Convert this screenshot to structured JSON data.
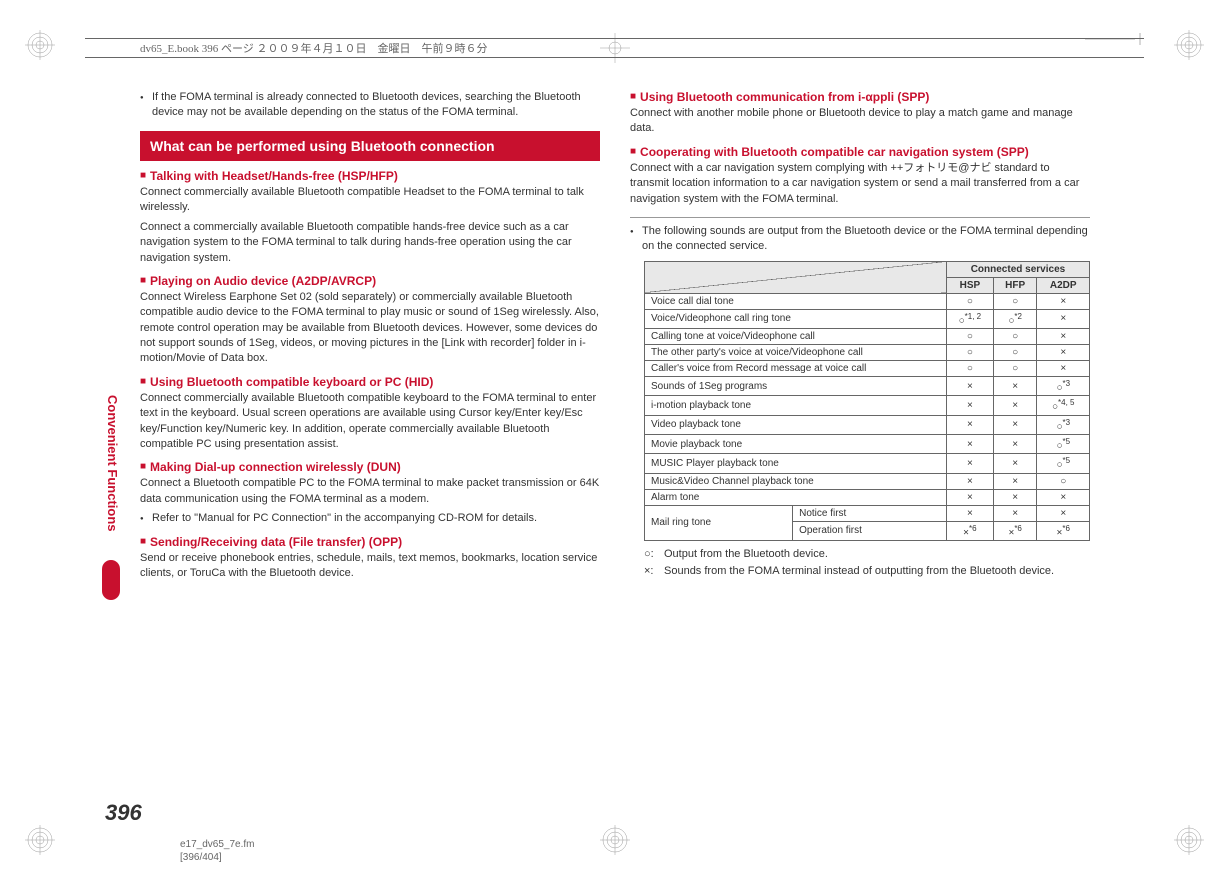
{
  "header": {
    "text": "dv65_E.book  396 ページ  ２００９年４月１０日　金曜日　午前９時６分"
  },
  "sidebar": {
    "label": "Convenient Functions"
  },
  "pageNumber": "396",
  "footer": {
    "line1": "e17_dv65_7e.fm",
    "line2": "[396/404]"
  },
  "leftColumn": {
    "intro": "If the FOMA terminal is already connected to Bluetooth devices, searching the Bluetooth device may not be available depending on the status of the FOMA terminal.",
    "sectionHeader": "What can be performed using Bluetooth connection",
    "sub1": {
      "title": "Talking with Headset/Hands-free (HSP/HFP)",
      "body1": "Connect commercially available Bluetooth compatible Headset to the FOMA terminal to talk wirelessly.",
      "body2": "Connect a commercially available Bluetooth compatible hands-free device such as a car navigation system to the FOMA terminal to talk during hands-free operation using the car navigation system."
    },
    "sub2": {
      "title": "Playing on Audio device (A2DP/AVRCP)",
      "body": "Connect Wireless Earphone Set 02 (sold separately) or commercially available Bluetooth compatible audio device to the FOMA terminal to play music or sound of 1Seg wirelessly. Also, remote control operation may be available from Bluetooth devices. However, some devices do not support sounds of 1Seg, videos, or moving pictures in the [Link with recorder] folder in i-motion/Movie of Data box."
    },
    "sub3": {
      "title": "Using Bluetooth compatible keyboard or PC (HID)",
      "body": "Connect commercially available Bluetooth compatible keyboard to the FOMA terminal to enter text in the keyboard. Usual screen operations are available using Cursor key/Enter key/Esc key/Function key/Numeric key. In addition, operate commercially available Bluetooth compatible PC using presentation assist."
    },
    "sub4": {
      "title": "Making Dial-up connection wirelessly (DUN)",
      "body": "Connect a Bluetooth compatible PC to the FOMA terminal to make packet transmission or 64K data communication using the FOMA terminal as a modem.",
      "bullet": "Refer to \"Manual for PC Connection\" in the accompanying CD-ROM for details."
    },
    "sub5": {
      "title": "Sending/Receiving data (File transfer) (OPP)",
      "body": "Send or receive phonebook entries, schedule, mails, text memos, bookmarks, location service clients, or ToruCa with the Bluetooth device."
    }
  },
  "rightColumn": {
    "sub1": {
      "title": "Using Bluetooth communication from i-αppli (SPP)",
      "body": "Connect with another mobile phone or Bluetooth device to play a match game and manage data."
    },
    "sub2": {
      "title": "Cooperating with Bluetooth compatible car navigation system (SPP)",
      "body": "Connect with a car navigation system complying with ++フォトリモ@ナビ standard to transmit location information to a car navigation system or send a mail transferred from a car navigation system with the FOMA terminal."
    },
    "tableIntro": "The following sounds are output from the Bluetooth device or the FOMA terminal depending on the connected service.",
    "table": {
      "headerGroup": "Connected services",
      "cols": [
        "HSP",
        "HFP",
        "A2DP"
      ],
      "rows": [
        {
          "label": "Voice call dial tone",
          "vals": [
            "○",
            "○",
            "×"
          ]
        },
        {
          "label": "Voice/Videophone call ring tone",
          "vals": [
            "○*1, 2",
            "○*2",
            "×"
          ]
        },
        {
          "label": "Calling tone at voice/Videophone call",
          "vals": [
            "○",
            "○",
            "×"
          ]
        },
        {
          "label": "The other party's voice at voice/Videophone call",
          "vals": [
            "○",
            "○",
            "×"
          ]
        },
        {
          "label": "Caller's voice from Record message at voice call",
          "vals": [
            "○",
            "○",
            "×"
          ]
        },
        {
          "label": "Sounds of 1Seg programs",
          "vals": [
            "×",
            "×",
            "○*3"
          ]
        },
        {
          "label": "i-motion playback tone",
          "vals": [
            "×",
            "×",
            "○*4, 5"
          ]
        },
        {
          "label": "Video playback tone",
          "vals": [
            "×",
            "×",
            "○*3"
          ]
        },
        {
          "label": "Movie playback tone",
          "vals": [
            "×",
            "×",
            "○*5"
          ]
        },
        {
          "label": "MUSIC Player playback tone",
          "vals": [
            "×",
            "×",
            "○*5"
          ]
        },
        {
          "label": "Music&Video Channel playback tone",
          "vals": [
            "×",
            "×",
            "○"
          ]
        },
        {
          "label": "Alarm tone",
          "vals": [
            "×",
            "×",
            "×"
          ]
        }
      ],
      "mailRow": {
        "label": "Mail ring tone",
        "sub1": {
          "label": "Notice first",
          "vals": [
            "×",
            "×",
            "×"
          ]
        },
        "sub2": {
          "label": "Operation first",
          "vals": [
            "×*6",
            "×*6",
            "×*6"
          ]
        }
      }
    },
    "legend": {
      "circle": "Output from the Bluetooth device.",
      "cross": "Sounds from the FOMA terminal instead of outputting from the Bluetooth device."
    }
  }
}
